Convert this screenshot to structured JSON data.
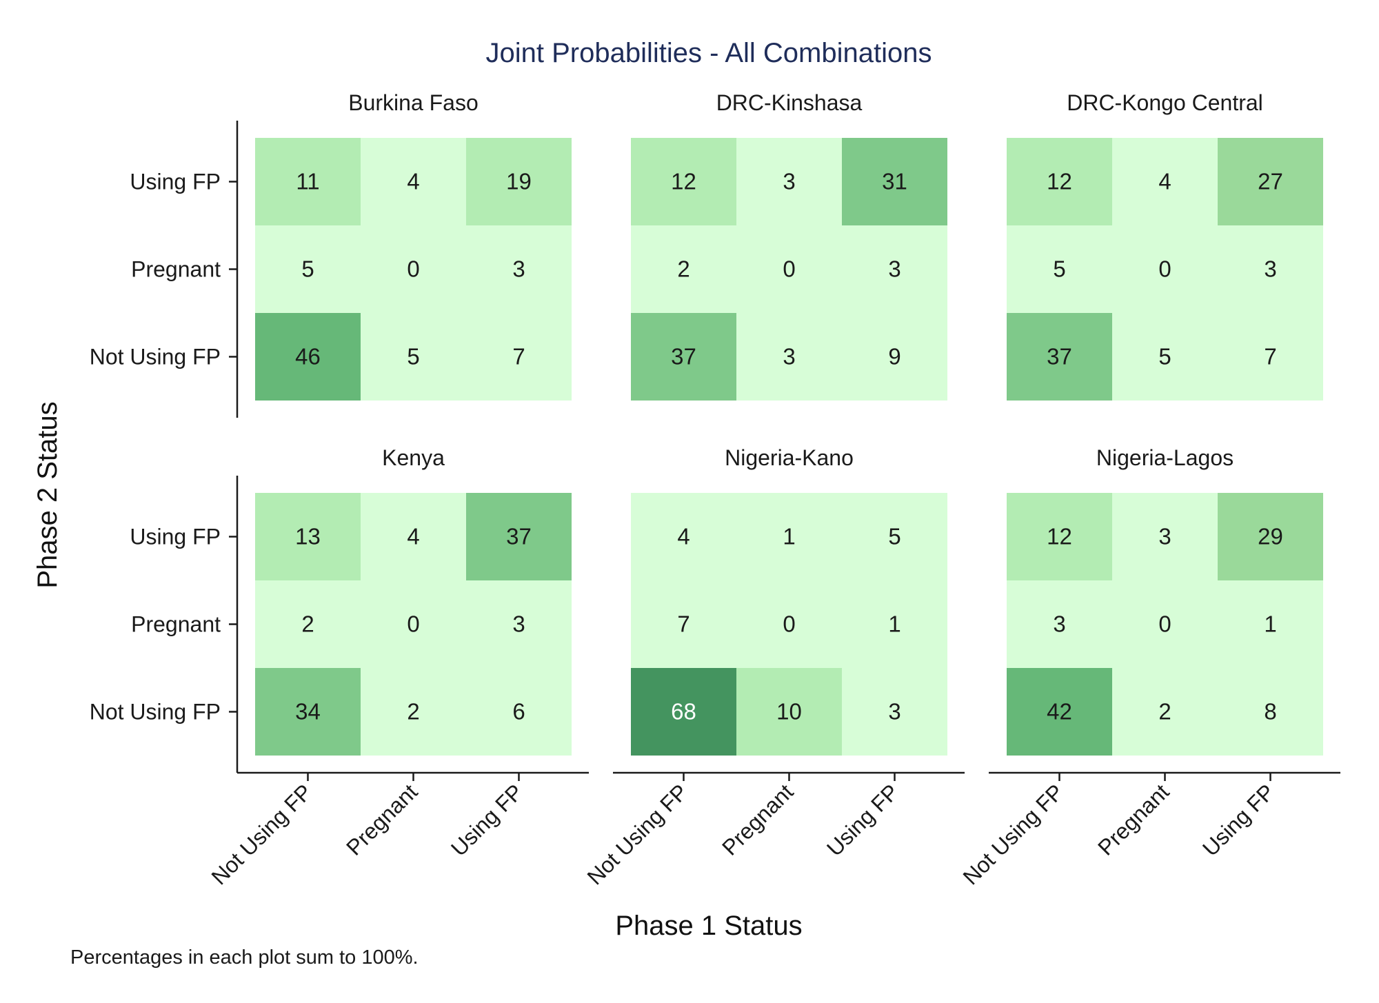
{
  "colors": {
    "title": "#1f2d5a",
    "scale": [
      {
        "min": 0,
        "color": "#d7fdd7"
      },
      {
        "min": 10,
        "color": "#b3ecb3"
      },
      {
        "min": 27,
        "color": "#9ad99a"
      },
      {
        "min": 30,
        "color": "#7fc98a"
      },
      {
        "min": 40,
        "color": "#66b878"
      },
      {
        "min": 60,
        "color": "#44945f"
      }
    ],
    "text_dark": "#1a1a1a",
    "text_light": "#ffffff"
  },
  "chart_data": {
    "type": "heatmap",
    "title": "Joint Probabilities - All Combinations",
    "xlabel": "Phase 1 Status",
    "ylabel": "Phase 2 Status",
    "caption": "Percentages in each plot sum to 100%.",
    "x_categories": [
      "Not Using FP",
      "Pregnant",
      "Using FP"
    ],
    "y_categories": [
      "Using FP",
      "Pregnant",
      "Not Using FP"
    ],
    "units": "percent",
    "panels": [
      {
        "name": "Burkina Faso",
        "values": [
          [
            11,
            4,
            19
          ],
          [
            5,
            0,
            3
          ],
          [
            46,
            5,
            7
          ]
        ]
      },
      {
        "name": "DRC-Kinshasa",
        "values": [
          [
            12,
            3,
            31
          ],
          [
            2,
            0,
            3
          ],
          [
            37,
            3,
            9
          ]
        ]
      },
      {
        "name": "DRC-Kongo Central",
        "values": [
          [
            12,
            4,
            27
          ],
          [
            5,
            0,
            3
          ],
          [
            37,
            5,
            7
          ]
        ]
      },
      {
        "name": "Kenya",
        "values": [
          [
            13,
            4,
            37
          ],
          [
            2,
            0,
            3
          ],
          [
            34,
            2,
            6
          ]
        ]
      },
      {
        "name": "Nigeria-Kano",
        "values": [
          [
            4,
            1,
            5
          ],
          [
            7,
            0,
            1
          ],
          [
            68,
            10,
            3
          ]
        ]
      },
      {
        "name": "Nigeria-Lagos",
        "values": [
          [
            12,
            3,
            29
          ],
          [
            3,
            0,
            1
          ],
          [
            42,
            2,
            8
          ]
        ]
      }
    ]
  }
}
